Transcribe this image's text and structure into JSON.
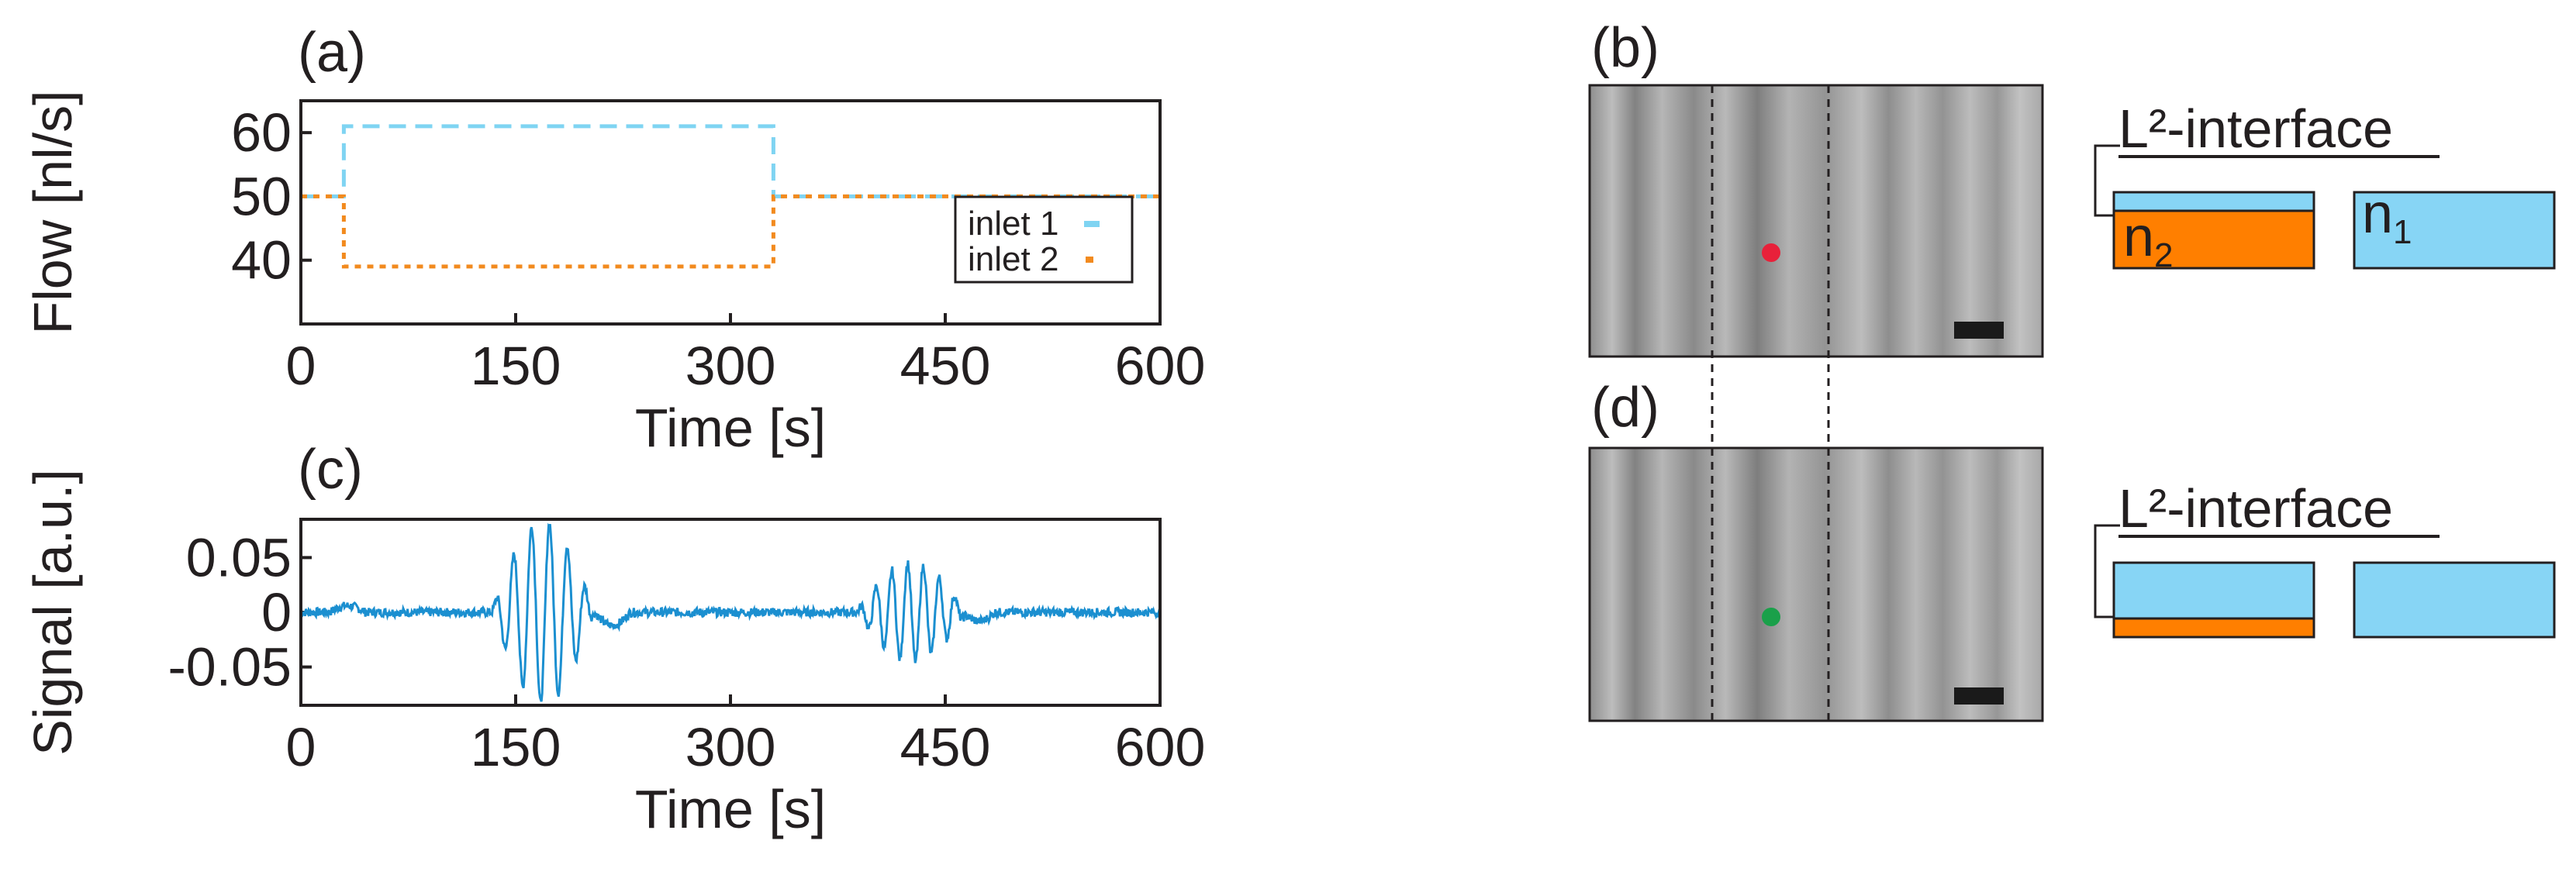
{
  "panel_labels": {
    "a": "(a)",
    "b": "(b)",
    "c": "(c)",
    "d": "(d)"
  },
  "colors": {
    "inlet1": "#7fd4f2",
    "inlet2": "#f28a1e",
    "signal": "#1b8fd0",
    "red_dot": "#e8213a",
    "green_dot": "#1aa04a",
    "box_blue": "#87d5f5",
    "box_orange": "#ff7f00"
  },
  "schematic": {
    "b": {
      "title": "L²-interface",
      "n2": "n",
      "n2_sub": "2",
      "n1": "n",
      "n1_sub": "1"
    },
    "d": {
      "title": "L²-interface"
    }
  },
  "chart_data": [
    {
      "id": "a",
      "type": "line",
      "xlabel": "Time [s]",
      "ylabel": "Flow [nl/s]",
      "xlim": [
        0,
        600
      ],
      "ylim": [
        30,
        65
      ],
      "xticks": [
        0,
        150,
        300,
        450,
        600
      ],
      "yticks": [
        40,
        50,
        60
      ],
      "legend": "bottom-right",
      "series": [
        {
          "name": "inlet 1",
          "style": "dashed",
          "x": [
            0,
            30,
            30,
            330,
            330,
            600
          ],
          "y": [
            50,
            50,
            61,
            61,
            50,
            50
          ]
        },
        {
          "name": "inlet 2",
          "style": "dotted",
          "x": [
            0,
            30,
            30,
            330,
            330,
            600
          ],
          "y": [
            50,
            50,
            39,
            39,
            50,
            50
          ]
        }
      ]
    },
    {
      "id": "c",
      "type": "line",
      "xlabel": "Time [s]",
      "ylabel": "Signal [a.u.]",
      "xlim": [
        0,
        600
      ],
      "ylim": [
        -0.085,
        0.085
      ],
      "xticks": [
        0,
        150,
        300,
        450,
        600
      ],
      "yticks": [
        0.05,
        0,
        -0.05
      ],
      "ytick_labels": [
        "0.05",
        "0",
        "-0.05"
      ],
      "bursts": [
        {
          "start": 133,
          "end": 205,
          "amplitude": 0.083,
          "period": 12.5
        },
        {
          "start": 388,
          "end": 465,
          "amplitude": 0.045,
          "period": 11
        }
      ]
    }
  ]
}
